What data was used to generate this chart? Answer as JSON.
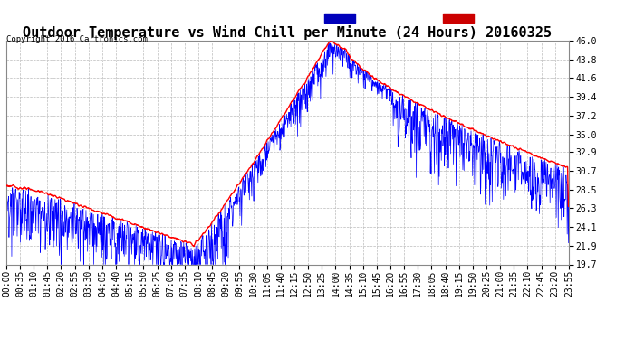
{
  "title": "Outdoor Temperature vs Wind Chill per Minute (24 Hours) 20160325",
  "copyright": "Copyright 2016 Cartronics.com",
  "ylim_min": 19.7,
  "ylim_max": 46.0,
  "yticks": [
    19.7,
    21.9,
    24.1,
    26.3,
    28.5,
    30.7,
    32.9,
    35.0,
    37.2,
    39.4,
    41.6,
    43.8,
    46.0
  ],
  "xtick_labels": [
    "00:00",
    "00:35",
    "01:10",
    "01:45",
    "02:20",
    "02:55",
    "03:30",
    "04:05",
    "04:40",
    "05:15",
    "05:50",
    "06:25",
    "07:00",
    "07:35",
    "08:10",
    "08:45",
    "09:20",
    "09:55",
    "10:30",
    "11:05",
    "11:40",
    "12:15",
    "12:50",
    "13:25",
    "14:00",
    "14:35",
    "15:10",
    "15:45",
    "16:20",
    "16:55",
    "17:30",
    "18:05",
    "18:40",
    "19:15",
    "19:50",
    "20:25",
    "21:00",
    "21:35",
    "22:10",
    "22:45",
    "23:20",
    "23:55"
  ],
  "legend_wind_chill_color": "#0000bb",
  "legend_temp_color": "#cc0000",
  "wind_chill_color": "#0000ff",
  "temp_color": "#ff0000",
  "bg_color": "#ffffff",
  "grid_color": "#bbbbbb",
  "title_fontsize": 11,
  "tick_fontsize": 7,
  "copyright_fontsize": 6.5
}
